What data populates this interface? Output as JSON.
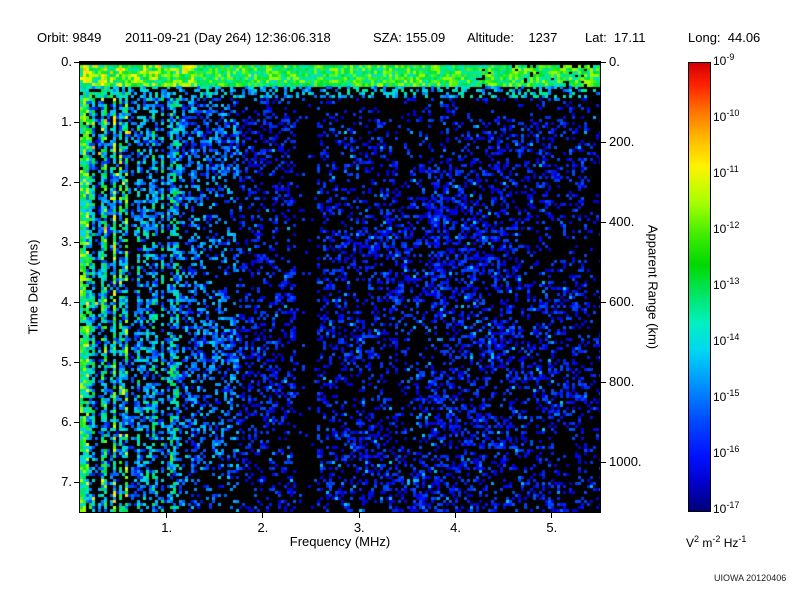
{
  "header": {
    "orbit": "Orbit: 9849",
    "datetime": "2011-09-21 (Day 264) 12:36:06.318",
    "sza": "SZA: 155.09",
    "altitude": "Altitude:    1237",
    "lat": "Lat:  17.11",
    "long": "Long:  44.06"
  },
  "chart_data": {
    "type": "heatmap",
    "title": "",
    "xlabel": "Frequency (MHz)",
    "ylabel_left": "Time Delay (ms)",
    "ylabel_right": "Apparent Range (km)",
    "xlim": [
      0.1,
      5.5
    ],
    "ylim_ms": [
      0,
      7.5
    ],
    "ylim_km": [
      0,
      1125
    ],
    "x_ticks": [
      {
        "v": 1.0,
        "label": "1."
      },
      {
        "v": 2.0,
        "label": "2."
      },
      {
        "v": 3.0,
        "label": "3."
      },
      {
        "v": 4.0,
        "label": "4."
      },
      {
        "v": 5.0,
        "label": "5."
      }
    ],
    "y_ticks_left": [
      {
        "v": 0,
        "label": "0."
      },
      {
        "v": 1,
        "label": "1."
      },
      {
        "v": 2,
        "label": "2."
      },
      {
        "v": 3,
        "label": "3."
      },
      {
        "v": 4,
        "label": "4."
      },
      {
        "v": 5,
        "label": "5."
      },
      {
        "v": 6,
        "label": "6."
      },
      {
        "v": 7,
        "label": "7."
      }
    ],
    "y_ticks_right": [
      {
        "v": 0,
        "label": "0."
      },
      {
        "v": 200,
        "label": "200."
      },
      {
        "v": 400,
        "label": "400."
      },
      {
        "v": 600,
        "label": "600."
      },
      {
        "v": 800,
        "label": "800."
      },
      {
        "v": 1000,
        "label": "1000."
      }
    ],
    "colorbar": {
      "scale": "log",
      "max_exp": -9,
      "min_exp": -17,
      "ticks": [
        {
          "base": "10",
          "exp": "-9"
        },
        {
          "base": "10",
          "exp": "-10"
        },
        {
          "base": "10",
          "exp": "-11"
        },
        {
          "base": "10",
          "exp": "-12"
        },
        {
          "base": "10",
          "exp": "-13"
        },
        {
          "base": "10",
          "exp": "-14"
        },
        {
          "base": "10",
          "exp": "-15"
        },
        {
          "base": "10",
          "exp": "-16"
        },
        {
          "base": "10",
          "exp": "-17"
        }
      ],
      "units": [
        {
          "t": "V",
          "e": "2"
        },
        {
          "t": "m",
          "e": "-2"
        },
        {
          "t": "Hz",
          "e": "-1"
        }
      ],
      "gradient": [
        {
          "pos": 0,
          "color": "#d40000"
        },
        {
          "pos": 5,
          "color": "#ff2200"
        },
        {
          "pos": 11,
          "color": "#ff7700"
        },
        {
          "pos": 17,
          "color": "#ffbb00"
        },
        {
          "pos": 23,
          "color": "#fff200"
        },
        {
          "pos": 31,
          "color": "#aaff00"
        },
        {
          "pos": 38,
          "color": "#44ee00"
        },
        {
          "pos": 45,
          "color": "#00d800"
        },
        {
          "pos": 53,
          "color": "#00e878"
        },
        {
          "pos": 58,
          "color": "#00f0c0"
        },
        {
          "pos": 64,
          "color": "#00d8f0"
        },
        {
          "pos": 72,
          "color": "#0090ff"
        },
        {
          "pos": 80,
          "color": "#0048ff"
        },
        {
          "pos": 88,
          "color": "#0010ff"
        },
        {
          "pos": 94,
          "color": "#0000c8"
        },
        {
          "pos": 100,
          "color": "#000078"
        }
      ]
    },
    "credit": "UIOWA 20120406",
    "features": [
      "bright surface echo band at ~0.1-0.4 ms time delay across all frequencies",
      "strong vertical noise/plasma-line streaks below ~1.6 MHz extending full delay range",
      "diffuse weak speckle near 1e-16 V2 m-2 Hz-1 across 1.7-5.4 MHz",
      "quiet vertical gap near 2.4 MHz"
    ],
    "render": {
      "seed": 20120406,
      "cell": 3,
      "band": {
        "top": 0.07,
        "bottom": 0.42,
        "t_min": 0.5,
        "t_span": 0.28,
        "hot_chance": 0.25,
        "hot_t": 0.78
      },
      "subband": {
        "bottom": 0.6,
        "density": 0.5,
        "t_min": 0.28,
        "t_span": 0.3
      },
      "regions": {
        "edge_f": 0.17,
        "low_f": 0.62,
        "mid_f": 1.15,
        "uppermid_f": 1.75,
        "hf_density": 0.3,
        "gap": [
          2.33,
          2.56
        ],
        "patch": {
          "f": [
            3.7,
            4.6
          ],
          "d": [
            1.8,
            6.4
          ],
          "boost": 1.4
        }
      },
      "cmap": [
        [
          0.0,
          8,
          8,
          120
        ],
        [
          0.15,
          0,
          0,
          230
        ],
        [
          0.3,
          0,
          100,
          255
        ],
        [
          0.45,
          0,
          205,
          255
        ],
        [
          0.55,
          0,
          235,
          160
        ],
        [
          0.65,
          0,
          225,
          50
        ],
        [
          0.75,
          140,
          255,
          0
        ],
        [
          0.85,
          255,
          250,
          0
        ],
        [
          0.93,
          255,
          150,
          0
        ],
        [
          1.0,
          255,
          30,
          0
        ]
      ]
    }
  }
}
